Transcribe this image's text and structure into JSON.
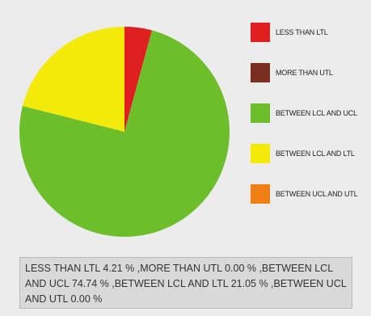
{
  "chart_data": {
    "type": "pie",
    "title": "",
    "slices": [
      {
        "label": "LESS THAN LTL",
        "value": 4.21,
        "color": "#e02020"
      },
      {
        "label": "MORE THAN UTL",
        "value": 0.0,
        "color": "#7a2e22"
      },
      {
        "label": "BETWEEN LCL AND UCL",
        "value": 74.74,
        "color": "#6cbf2a"
      },
      {
        "label": "BETWEEN LCL AND LTL",
        "value": 21.05,
        "color": "#f4ea0a"
      },
      {
        "label": "BETWEEN UCL AND UTL",
        "value": 0.0,
        "color": "#f07f16"
      }
    ],
    "start_angle_deg": 0,
    "direction": "clockwise",
    "legend_position": "right"
  },
  "legend": {
    "items": [
      {
        "label": "LESS THAN LTL",
        "color": "#e02020"
      },
      {
        "label": "MORE THAN UTL",
        "color": "#7a2e22"
      },
      {
        "label": "BETWEEN LCL AND UCL",
        "color": "#6cbf2a"
      },
      {
        "label": "BETWEEN LCL AND LTL",
        "color": "#f4ea0a"
      },
      {
        "label": "BETWEEN UCL AND UTL",
        "color": "#f07f16"
      }
    ]
  },
  "summary": {
    "text": "LESS THAN LTL 4.21 % ,MORE THAN UTL 0.00 % ,BETWEEN LCL AND UCL 74.74 % ,BETWEEN LCL AND LTL 21.05 % ,BETWEEN UCL AND UTL 0.00 %"
  }
}
